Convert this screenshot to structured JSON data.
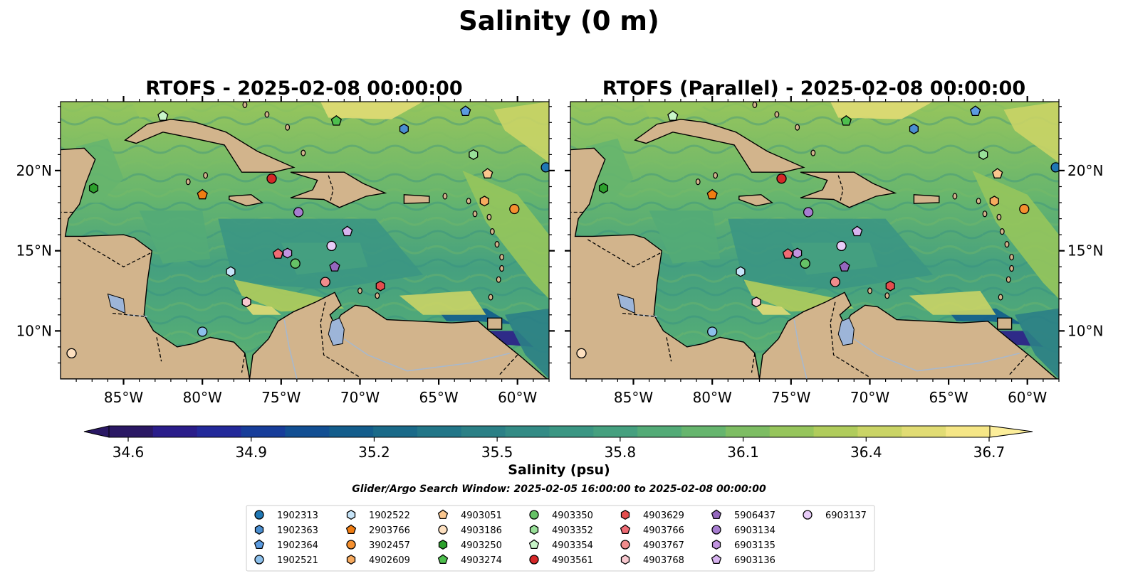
{
  "figure": {
    "title": "Salinity (0 m)",
    "search_window": "Glider/Argo Search Window: 2025-02-05 16:00:00 to 2025-02-08 00:00:00"
  },
  "panels": [
    {
      "title": "RTOFS - 2025-02-08 00:00:00",
      "y_labels_side": "left"
    },
    {
      "title": "RTOFS (Parallel) - 2025-02-08 00:00:00",
      "y_labels_side": "right"
    }
  ],
  "map": {
    "projection": "PlateCarree",
    "lon_range": [
      -89.0,
      -58.0
    ],
    "lat_range": [
      7.0,
      24.3
    ],
    "x_tick_labels": [
      {
        "lon": -85,
        "label": "85°W"
      },
      {
        "lon": -80,
        "label": "80°W"
      },
      {
        "lon": -75,
        "label": "75°W"
      },
      {
        "lon": -70,
        "label": "70°W"
      },
      {
        "lon": -65,
        "label": "65°W"
      },
      {
        "lon": -60,
        "label": "60°W"
      }
    ],
    "y_tick_labels": [
      {
        "lat": 20,
        "label": "20°N"
      },
      {
        "lat": 15,
        "label": "15°N"
      },
      {
        "lat": 10,
        "label": "10°N"
      }
    ],
    "colors": {
      "land": "#d2b48c",
      "deep_pacific": "#2b1a6a",
      "lakes": "#9db5d8",
      "rivers": "#a8b8cc"
    }
  },
  "colorbar": {
    "label": "Salinity (psu)",
    "range": [
      34.6,
      36.7
    ],
    "extend": "both",
    "tick_labels": [
      "34.6",
      "34.9",
      "35.2",
      "35.5",
      "35.8",
      "36.1",
      "36.4",
      "36.7"
    ],
    "colormap": "haline",
    "colors": [
      "#2a1864",
      "#2a1d8a",
      "#23299a",
      "#173d9a",
      "#124f93",
      "#135d8c",
      "#1a6a89",
      "#227688",
      "#2b8086",
      "#338b85",
      "#3b9683",
      "#45a07f",
      "#53ab77",
      "#66b56e",
      "#7dbd63",
      "#96c55c",
      "#b0cc5c",
      "#cad466",
      "#e1dc74",
      "#f5e686"
    ]
  },
  "chart_data": {
    "type": "scatter",
    "title": "Salinity (0 m)",
    "series": [
      {
        "name": "1902313",
        "marker": "circle",
        "color": "#1f77b4",
        "points": [
          [
            -58.2,
            20.2
          ]
        ]
      },
      {
        "name": "1902363",
        "marker": "hexagon",
        "color": "#4a8ed0",
        "points": [
          [
            -67.2,
            22.6
          ]
        ]
      },
      {
        "name": "1902364",
        "marker": "pentagon",
        "color": "#5b9be0",
        "points": [
          [
            -63.3,
            23.7
          ]
        ]
      },
      {
        "name": "1902521",
        "marker": "circle",
        "color": "#8cc0ec",
        "points": [
          [
            -80.0,
            9.95
          ]
        ]
      },
      {
        "name": "1902522",
        "marker": "hexagon",
        "color": "#c6e4f8",
        "points": [
          [
            -78.2,
            13.7
          ]
        ]
      },
      {
        "name": "2903766",
        "marker": "pentagon",
        "color": "#f07d12",
        "points": [
          [
            -80.0,
            18.5
          ]
        ]
      },
      {
        "name": "3902457",
        "marker": "circle",
        "color": "#f5902f",
        "points": [
          [
            -60.2,
            17.6
          ]
        ]
      },
      {
        "name": "4902609",
        "marker": "hexagon",
        "color": "#f7aa5e",
        "points": [
          [
            -62.1,
            18.1
          ]
        ]
      },
      {
        "name": "4903051",
        "marker": "pentagon",
        "color": "#fac68e",
        "points": [
          [
            -61.9,
            19.8
          ]
        ]
      },
      {
        "name": "4903186",
        "marker": "circle",
        "color": "#fde0c0",
        "points": [
          [
            -88.3,
            8.6
          ]
        ]
      },
      {
        "name": "4903250",
        "marker": "hexagon",
        "color": "#2ca02c",
        "points": [
          [
            -86.9,
            18.9
          ]
        ]
      },
      {
        "name": "4903274",
        "marker": "pentagon",
        "color": "#4ebf4e",
        "points": [
          [
            -71.5,
            23.1
          ]
        ]
      },
      {
        "name": "4903350",
        "marker": "circle",
        "color": "#66c266",
        "points": [
          [
            -74.1,
            14.2
          ]
        ]
      },
      {
        "name": "4903352",
        "marker": "hexagon",
        "color": "#99e099",
        "points": [
          [
            -62.8,
            21.0
          ]
        ]
      },
      {
        "name": "4903354",
        "marker": "pentagon",
        "color": "#c8f5c8",
        "points": [
          [
            -82.5,
            23.4
          ]
        ]
      },
      {
        "name": "4903561",
        "marker": "circle",
        "color": "#d62728",
        "points": [
          [
            -75.6,
            19.5
          ]
        ]
      },
      {
        "name": "4903629",
        "marker": "hexagon",
        "color": "#e44d4d",
        "points": [
          [
            -68.7,
            12.8
          ]
        ]
      },
      {
        "name": "4903766",
        "marker": "pentagon",
        "color": "#ef6b74",
        "points": [
          [
            -75.2,
            14.8
          ]
        ]
      },
      {
        "name": "4903767",
        "marker": "circle",
        "color": "#f08c8c",
        "points": [
          [
            -72.2,
            13.05
          ]
        ]
      },
      {
        "name": "4903768",
        "marker": "hexagon",
        "color": "#f8c8cf",
        "points": [
          [
            -77.2,
            11.8
          ]
        ]
      },
      {
        "name": "5906437",
        "marker": "pentagon",
        "color": "#9467bd",
        "points": [
          [
            -71.6,
            14.0
          ]
        ]
      },
      {
        "name": "6903134",
        "marker": "circle",
        "color": "#a77dd0",
        "points": [
          [
            -73.9,
            17.4
          ]
        ]
      },
      {
        "name": "6903135",
        "marker": "hexagon",
        "color": "#c294e0",
        "points": [
          [
            -74.6,
            14.85
          ]
        ]
      },
      {
        "name": "6903136",
        "marker": "pentagon",
        "color": "#d7b3ef",
        "points": [
          [
            -70.8,
            16.2
          ]
        ]
      },
      {
        "name": "6903137",
        "marker": "circle",
        "color": "#e8ccf8",
        "points": [
          [
            -71.8,
            15.3
          ]
        ]
      }
    ]
  }
}
